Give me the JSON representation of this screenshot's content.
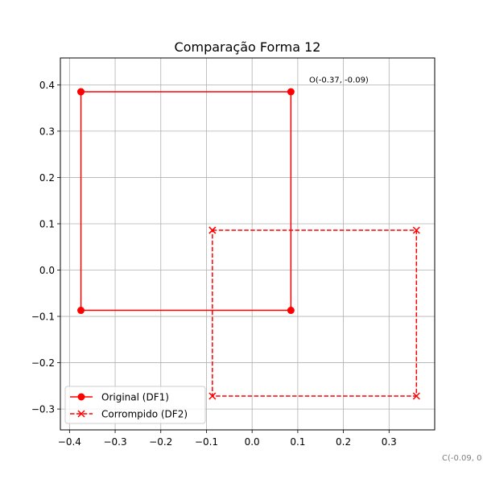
{
  "chart_data": {
    "type": "line",
    "title": "Comparação Forma 12",
    "xlabel": "",
    "ylabel": "",
    "xlim": [
      -0.42,
      0.4
    ],
    "ylim": [
      -0.345,
      0.458
    ],
    "xticks": [
      -0.4,
      -0.3,
      -0.2,
      -0.1,
      0.0,
      0.1,
      0.2,
      0.3
    ],
    "yticks": [
      -0.3,
      -0.2,
      -0.1,
      0.0,
      0.1,
      0.2,
      0.3,
      0.4
    ],
    "xtick_labels": [
      "−0.4",
      "−0.3",
      "−0.2",
      "−0.1",
      "0.0",
      "0.1",
      "0.2",
      "0.3"
    ],
    "ytick_labels": [
      "−0.3",
      "−0.2",
      "−0.1",
      "0.0",
      "0.1",
      "0.2",
      "0.3",
      "0.4"
    ],
    "grid": true,
    "legend_position": "lower-left",
    "series": [
      {
        "name": "Original (DF1)",
        "color": "#ff0000",
        "linestyle": "solid",
        "marker": "circle",
        "x": [
          -0.375,
          0.085,
          0.085,
          -0.375,
          -0.375
        ],
        "y": [
          0.385,
          0.385,
          -0.087,
          -0.087,
          0.385
        ]
      },
      {
        "name": "Corrompido (DF2)",
        "color": "#ff0000",
        "linestyle": "dashed",
        "marker": "x",
        "x": [
          -0.087,
          0.36,
          0.36,
          -0.087,
          -0.087
        ],
        "y": [
          0.086,
          0.086,
          -0.272,
          -0.272,
          0.086
        ]
      }
    ],
    "annotations": [
      {
        "text": "O(-0.37, -0.09)",
        "x": 0.125,
        "y": 0.41,
        "color": "#000000"
      },
      {
        "text": "C(-0.09, 0",
        "color": "#808080"
      }
    ]
  }
}
